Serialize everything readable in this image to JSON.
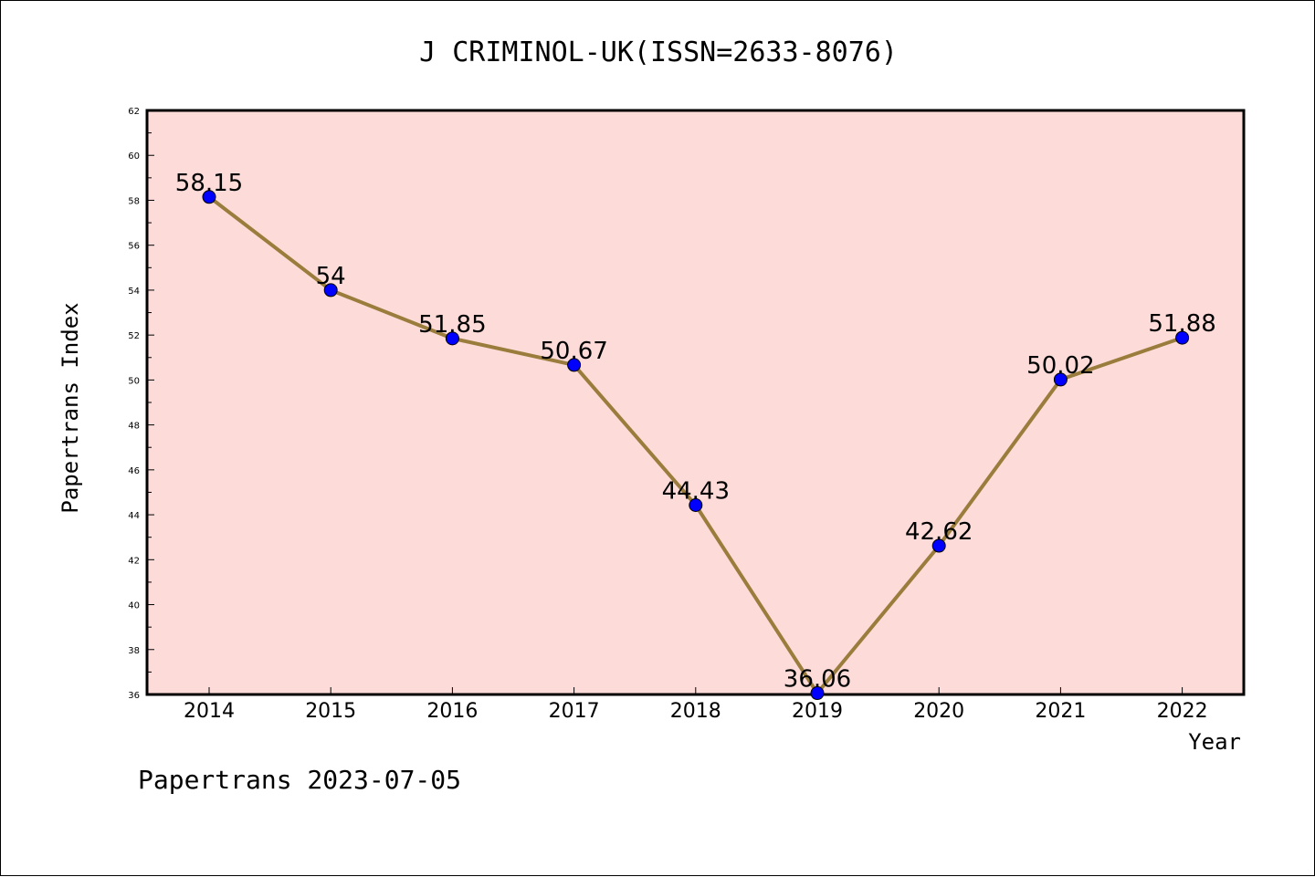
{
  "chart_data": {
    "type": "line",
    "title": "J CRIMINOL-UK(ISSN=2633-8076)",
    "xlabel": "Year",
    "ylabel": "Papertrans Index",
    "categories": [
      "2014",
      "2015",
      "2016",
      "2017",
      "2018",
      "2019",
      "2020",
      "2021",
      "2022"
    ],
    "series": [
      {
        "values": [
          58.15,
          54,
          51.85,
          50.67,
          44.43,
          36.06,
          42.62,
          50.02,
          51.88
        ],
        "labels": [
          "58.15",
          "54",
          "51.85",
          "50.67",
          "44.43",
          "36.06",
          "42.62",
          "50.02",
          "51.88"
        ]
      }
    ],
    "ylim": [
      36,
      62
    ],
    "yticks": [
      36,
      38,
      40,
      42,
      44,
      46,
      48,
      50,
      52,
      54,
      56,
      58,
      60,
      62
    ],
    "grid": false,
    "legend": "none",
    "colors": {
      "plot_background": "#fddbd8",
      "line": "#9a7d3c",
      "marker": "#0000ff"
    }
  },
  "footer": {
    "text": "Papertrans 2023-07-05"
  }
}
